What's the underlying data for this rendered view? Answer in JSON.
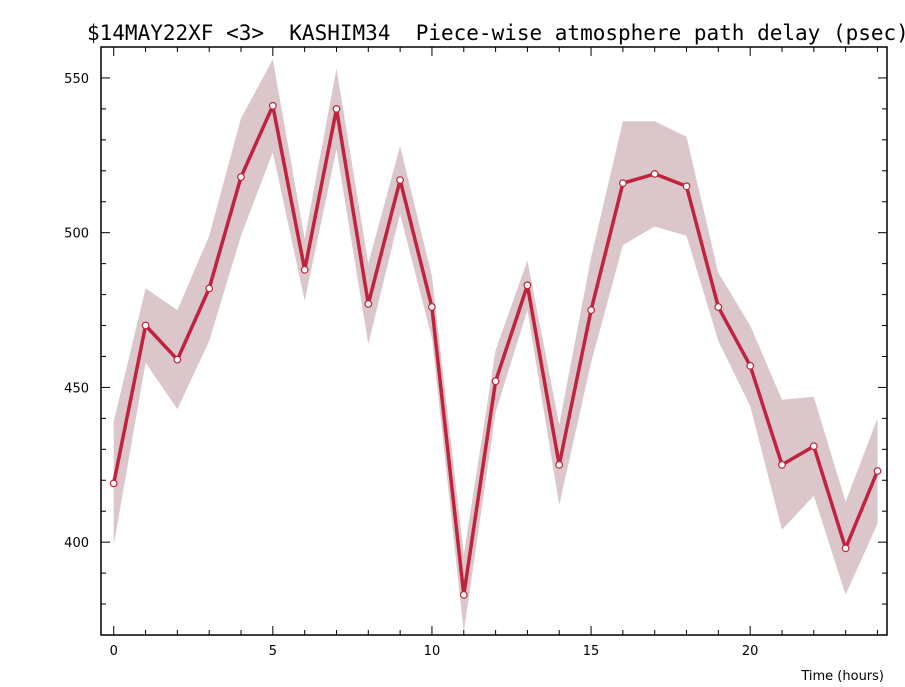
{
  "chart_data": {
    "type": "line",
    "title": "$14MAY22XF <3>  KASHIM34  Piece-wise atmosphere path delay (psec)",
    "xlabel": "Time (hours)",
    "ylabel": "",
    "xlim": [
      -0.4,
      24.3
    ],
    "ylim": [
      370,
      560
    ],
    "x_ticks": [
      0,
      5,
      10,
      15,
      20
    ],
    "y_ticks": [
      400,
      450,
      500,
      550
    ],
    "grid": false,
    "legend": "none",
    "colors": {
      "line": "#c0233e",
      "band": "#dbc6ca",
      "marker_fill": "#ffffff"
    },
    "series": [
      {
        "x": [
          0,
          1,
          2,
          3,
          4,
          5,
          6,
          7,
          8,
          9,
          10,
          11,
          12,
          13,
          14,
          15,
          16,
          17,
          18,
          19,
          20,
          21,
          22,
          23,
          24
        ],
        "values": [
          419,
          470,
          459,
          482,
          518,
          541,
          488,
          540,
          477,
          517,
          476,
          383,
          452,
          483,
          425,
          475,
          516,
          519,
          515,
          476,
          457,
          425,
          431,
          398,
          423
        ],
        "upper": [
          439,
          482,
          475,
          499,
          537,
          556,
          498,
          553,
          490,
          528,
          486,
          396,
          462,
          491,
          438,
          492,
          536,
          536,
          531,
          487,
          470,
          446,
          447,
          413,
          440
        ],
        "lower": [
          399,
          458,
          443,
          465,
          499,
          526,
          478,
          527,
          464,
          506,
          466,
          371,
          442,
          475,
          412,
          458,
          496,
          502,
          499,
          465,
          444,
          404,
          415,
          383,
          406
        ]
      }
    ]
  }
}
